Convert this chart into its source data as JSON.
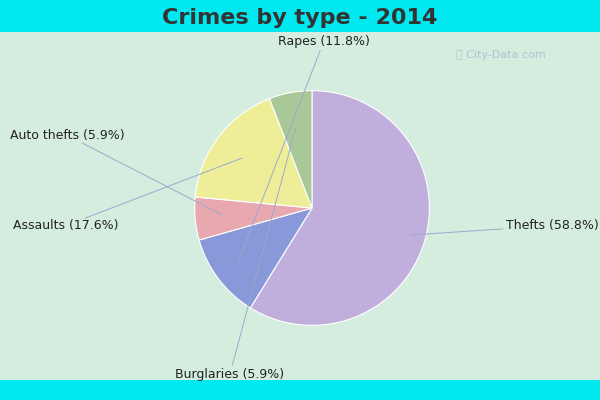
{
  "title": "Crimes by type - 2014",
  "slices": [
    {
      "label": "Thefts (58.8%)",
      "value": 58.8,
      "color": "#c0aedd"
    },
    {
      "label": "Rapes (11.8%)",
      "value": 11.8,
      "color": "#8898d8"
    },
    {
      "label": "Auto thefts (5.9%)",
      "value": 5.9,
      "color": "#e8a8b0"
    },
    {
      "label": "Assaults (17.6%)",
      "value": 17.6,
      "color": "#eeee98"
    },
    {
      "label": "Burglaries (5.9%)",
      "value": 5.9,
      "color": "#a8c898"
    }
  ],
  "bg_cyan": "#00e8f0",
  "bg_inner": "#d4eddf",
  "title_fontsize": 16,
  "label_fontsize": 9,
  "watermark": "ⓘ City-Data.com",
  "title_color": "#333333",
  "label_color": "#222222"
}
